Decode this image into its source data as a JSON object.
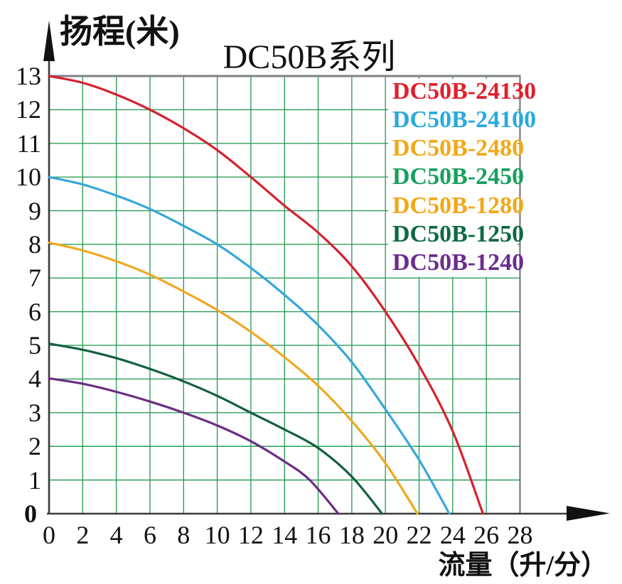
{
  "title": "DC50B系列",
  "axes": {
    "y_label": "扬程(米)",
    "x_label": "流量（升/分）"
  },
  "legend": {
    "items": [
      {
        "label": "DC50B-24130",
        "color": "#e0202c"
      },
      {
        "label": "DC50B-24100",
        "color": "#2aa9e0"
      },
      {
        "label": "DC50B-2480",
        "color": "#f3a818"
      },
      {
        "label": "DC50B-2450",
        "color": "#17a05d"
      },
      {
        "label": "DC50B-1280",
        "color": "#f3a818"
      },
      {
        "label": "DC50B-1250",
        "color": "#0e6a42"
      },
      {
        "label": "DC50B-1240",
        "color": "#6b2d8d"
      }
    ]
  },
  "chart_data": {
    "type": "line",
    "title": "DC50B系列",
    "xlabel": "流量（升/分）",
    "ylabel": "扬程(米)",
    "xlim": [
      0,
      28
    ],
    "ylim": [
      0,
      13
    ],
    "x_ticks": [
      0,
      2,
      4,
      6,
      8,
      10,
      12,
      14,
      16,
      18,
      20,
      22,
      24,
      26,
      28
    ],
    "y_ticks": [
      0,
      1,
      2,
      3,
      4,
      5,
      6,
      7,
      8,
      9,
      10,
      11,
      12,
      13
    ],
    "grid": true,
    "grid_color": "#2e9e5b",
    "axis_color": "#3a3a3a",
    "border_color": "#808080",
    "legend_position": "top-right",
    "series": [
      {
        "name": "DC50B-24130",
        "color": "#d5212e",
        "points": [
          [
            0,
            13
          ],
          [
            2,
            12.8
          ],
          [
            4,
            12.45
          ],
          [
            6,
            12.0
          ],
          [
            8,
            11.45
          ],
          [
            10,
            10.8
          ],
          [
            12,
            10.0
          ],
          [
            14,
            9.15
          ],
          [
            16,
            8.35
          ],
          [
            18,
            7.35
          ],
          [
            20,
            6.0
          ],
          [
            22,
            4.4
          ],
          [
            24,
            2.45
          ],
          [
            25.8,
            0
          ]
        ]
      },
      {
        "name": "DC50B-24100",
        "color": "#35a7da",
        "points": [
          [
            0,
            10
          ],
          [
            2,
            9.78
          ],
          [
            4,
            9.45
          ],
          [
            6,
            9.05
          ],
          [
            8,
            8.55
          ],
          [
            10,
            8.0
          ],
          [
            12,
            7.3
          ],
          [
            14,
            6.5
          ],
          [
            16,
            5.6
          ],
          [
            18,
            4.5
          ],
          [
            20,
            3.1
          ],
          [
            22,
            1.6
          ],
          [
            23.8,
            0
          ]
        ]
      },
      {
        "name": "DC50B-2480 / DC50B-1280",
        "color": "#f0a81f",
        "points": [
          [
            0,
            8.05
          ],
          [
            2,
            7.82
          ],
          [
            4,
            7.5
          ],
          [
            6,
            7.1
          ],
          [
            8,
            6.6
          ],
          [
            10,
            6.05
          ],
          [
            12,
            5.4
          ],
          [
            14,
            4.65
          ],
          [
            16,
            3.8
          ],
          [
            18,
            2.75
          ],
          [
            20,
            1.5
          ],
          [
            21.9,
            0
          ]
        ]
      },
      {
        "name": "DC50B-2450 / DC50B-1250",
        "color": "#155f41",
        "points": [
          [
            0,
            5.05
          ],
          [
            2,
            4.87
          ],
          [
            4,
            4.62
          ],
          [
            6,
            4.3
          ],
          [
            8,
            3.93
          ],
          [
            10,
            3.5
          ],
          [
            12,
            3.0
          ],
          [
            14,
            2.5
          ],
          [
            16,
            1.95
          ],
          [
            18,
            1.1
          ],
          [
            19.8,
            0
          ]
        ]
      },
      {
        "name": "DC50B-1240",
        "color": "#6b2d84",
        "points": [
          [
            0,
            4.02
          ],
          [
            2,
            3.86
          ],
          [
            4,
            3.62
          ],
          [
            6,
            3.33
          ],
          [
            8,
            3.0
          ],
          [
            10,
            2.62
          ],
          [
            12,
            2.15
          ],
          [
            14,
            1.55
          ],
          [
            15.5,
            1.0
          ],
          [
            17.2,
            0
          ]
        ]
      }
    ]
  }
}
